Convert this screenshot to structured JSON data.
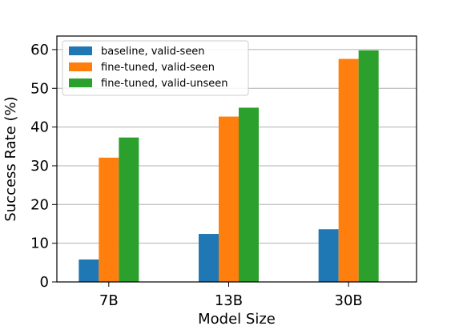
{
  "chart_data": {
    "type": "bar",
    "categories": [
      "7B",
      "13B",
      "30B"
    ],
    "series": [
      {
        "name": "baseline, valid-seen",
        "values": [
          5.8,
          12.4,
          13.6
        ],
        "color": "#1f77b4"
      },
      {
        "name": "fine-tuned, valid-seen",
        "values": [
          32.1,
          42.7,
          57.6
        ],
        "color": "#ff7f0e"
      },
      {
        "name": "fine-tuned, valid-unseen",
        "values": [
          37.3,
          45.0,
          59.8
        ],
        "color": "#2ca02c"
      }
    ],
    "xlabel": "Model Size",
    "ylabel": "Success Rate (%)",
    "ylim": [
      0,
      63.5
    ],
    "yticks": [
      0,
      10,
      20,
      30,
      40,
      50,
      60
    ],
    "grid": "horizontal",
    "legend": "top-left"
  }
}
